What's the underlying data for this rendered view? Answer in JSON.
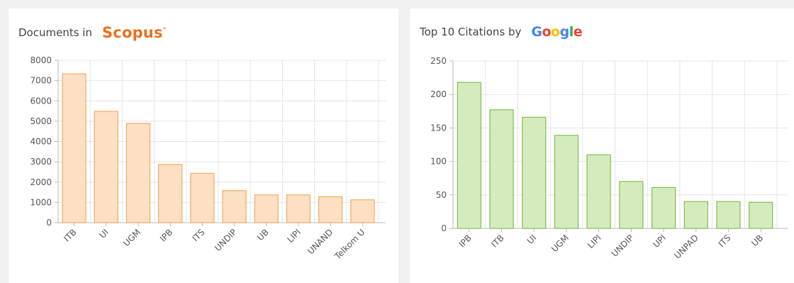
{
  "charts": [
    {
      "title_prefix": "Documents in",
      "brand": "Scopus",
      "brand_mark": "°",
      "colors": {
        "fill": "#fde0c3",
        "stroke": "#f4a964"
      }
    },
    {
      "title_prefix": "Top 10 Citations by",
      "brand": "Google",
      "brand_colors": [
        "#4285f4",
        "#ea4335",
        "#fbbc05",
        "#4285f4",
        "#34a853",
        "#ea4335"
      ],
      "colors": {
        "fill": "#d4ecbd",
        "stroke": "#7fbf4c"
      }
    }
  ],
  "chart_data": [
    {
      "type": "bar",
      "title": "Documents in Scopus",
      "categories": [
        "ITB",
        "UI",
        "UGM",
        "IPB",
        "ITS",
        "UNDIP",
        "UB",
        "LIPI",
        "UNAND",
        "Telkom U"
      ],
      "values": [
        7330,
        5480,
        4890,
        2870,
        2430,
        1580,
        1370,
        1370,
        1280,
        1130
      ],
      "ylim": [
        0,
        8000
      ],
      "yticks": [
        0,
        1000,
        2000,
        3000,
        4000,
        5000,
        6000,
        7000,
        8000
      ],
      "grid": true
    },
    {
      "type": "bar",
      "title": "Top 10 Citations by Google",
      "categories": [
        "IPB",
        "ITB",
        "UI",
        "UGM",
        "LIPI",
        "UNDIP",
        "UPI",
        "UNPAD",
        "ITS",
        "UB"
      ],
      "values": [
        218,
        177,
        166,
        139,
        110,
        70,
        61,
        40,
        40,
        39
      ],
      "ylim": [
        0,
        250
      ],
      "yticks": [
        0,
        50,
        100,
        150,
        200,
        250
      ],
      "grid": true
    }
  ]
}
